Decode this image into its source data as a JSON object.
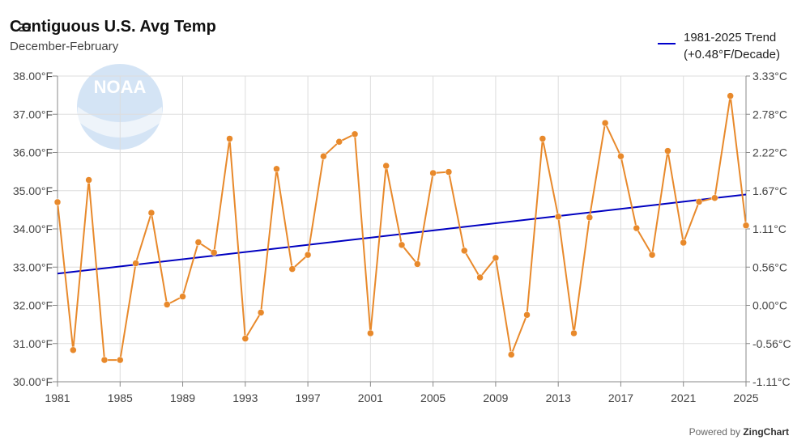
{
  "header": {
    "title": "Contiguous U.S. Avg Temp",
    "subtitle": "December-February"
  },
  "legend": {
    "line1": "1981-2025 Trend",
    "line2": "(+0.48°F/Decade)"
  },
  "footer": {
    "powered_prefix": "Powered by",
    "powered_brand": "ZingChart"
  },
  "logo": {
    "text": "NOAA"
  },
  "colors": {
    "series": "#e8892b",
    "trend": "#0000c0",
    "grid": "#dddddd"
  },
  "chart_data": {
    "type": "line",
    "title": "Contiguous U.S. Avg Temp",
    "subtitle": "December-February",
    "x": [
      1981,
      1982,
      1983,
      1984,
      1985,
      1986,
      1987,
      1988,
      1989,
      1990,
      1991,
      1992,
      1993,
      1994,
      1995,
      1996,
      1997,
      1998,
      1999,
      2000,
      2001,
      2002,
      2003,
      2004,
      2005,
      2006,
      2007,
      2008,
      2009,
      2010,
      2011,
      2012,
      2013,
      2014,
      2015,
      2016,
      2017,
      2018,
      2019,
      2020,
      2021,
      2022,
      2023,
      2024,
      2025
    ],
    "series": [
      {
        "values": [
          34.7,
          30.83,
          35.28,
          30.57,
          30.57,
          33.1,
          34.42,
          32.02,
          32.23,
          33.65,
          33.38,
          36.36,
          31.13,
          31.81,
          35.57,
          32.95,
          33.32,
          35.9,
          36.28,
          36.48,
          31.27,
          35.65,
          33.58,
          33.08,
          35.46,
          35.49,
          33.43,
          32.73,
          33.24,
          30.71,
          31.75,
          36.36,
          34.32,
          31.27,
          34.3,
          36.77,
          35.9,
          34.02,
          33.32,
          36.04,
          33.64,
          34.71,
          34.81,
          37.48,
          34.09
        ]
      }
    ],
    "trend": {
      "label": "1981-2025 Trend",
      "rate": "+0.48°F/Decade",
      "start": [
        1981,
        32.83
      ],
      "end": [
        2025,
        34.9
      ]
    },
    "ylim": [
      30,
      38
    ],
    "xlim": [
      1981,
      2025
    ],
    "x_tick_labels": [
      "1981",
      "1985",
      "1989",
      "1993",
      "1997",
      "2001",
      "2005",
      "2009",
      "2013",
      "2017",
      "2021",
      "2025"
    ],
    "y_tick_labels_left": [
      "30.00°F",
      "31.00°F",
      "32.00°F",
      "33.00°F",
      "34.00°F",
      "35.00°F",
      "36.00°F",
      "37.00°F",
      "38.00°F"
    ],
    "y_tick_labels_right": [
      "-1.11°C",
      "-0.56°C",
      "0.00°C",
      "0.56°C",
      "1.11°C",
      "1.67°C",
      "2.22°C",
      "2.78°C",
      "3.33°C"
    ],
    "grid": true,
    "legend_position": "top-right"
  }
}
